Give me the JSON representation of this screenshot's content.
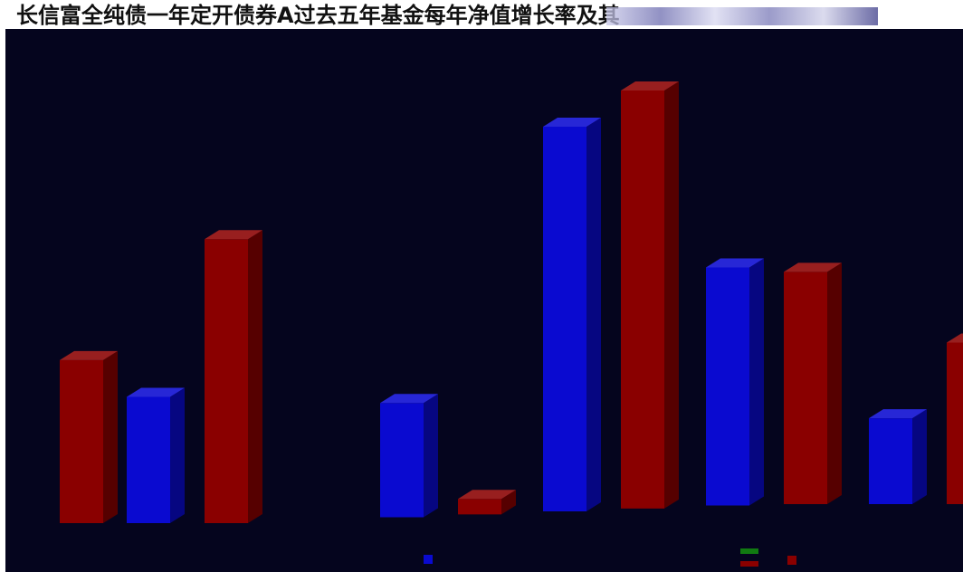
{
  "page": {
    "title": "长信富全纯债一年定开债券A过去五年基金每年净值增长率及其"
  },
  "chart_data": {
    "type": "bar",
    "title": "长信富全纯债一年定开债券A过去五年基金每年净值增长率及其",
    "categories": [
      "",
      "",
      "",
      "",
      "",
      ""
    ],
    "series": [
      {
        "values": [
          null,
          2.4,
          2.2,
          7.5,
          4.7,
          1.7
        ],
        "color": "#0a0ad0"
      },
      {
        "values": [
          3.1,
          5.4,
          0.3,
          8.2,
          4.6,
          3.2
        ],
        "color": "#8a0000"
      }
    ],
    "ylim": [
      0,
      9
    ],
    "grid": false,
    "legend": "bottom-center",
    "colors": {
      "background": "#05051e",
      "blue": "#0a0ad0",
      "red": "#8a0000"
    }
  }
}
